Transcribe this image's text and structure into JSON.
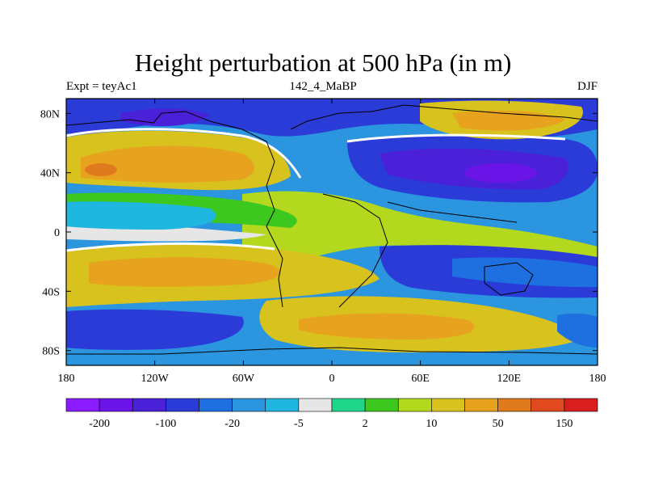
{
  "chart_data": {
    "type": "heatmap",
    "title": "Height perturbation at 500 hPa (in m)",
    "left_label": "Expt = teyAc1",
    "center_label": "142_4_MaBP",
    "right_label": "DJF",
    "x_ticks": [
      "180",
      "120W",
      "60W",
      "0",
      "60E",
      "120E",
      "180"
    ],
    "x_tick_values": [
      -180,
      -120,
      -60,
      0,
      60,
      120,
      180
    ],
    "y_ticks": [
      "80N",
      "40N",
      "0",
      "40S",
      "80S"
    ],
    "y_tick_values": [
      80,
      40,
      0,
      -40,
      -80
    ],
    "xlim": [
      -180,
      180
    ],
    "ylim": [
      -90,
      90
    ],
    "colorbar": {
      "colors": [
        "#8a1bff",
        "#6b14e8",
        "#4a20d8",
        "#2a3bd8",
        "#1e6fe0",
        "#2b95e0",
        "#1fb6e0",
        "#e6e6e6",
        "#1ed58a",
        "#3cc81e",
        "#b4d81e",
        "#d8c21e",
        "#e8a31e",
        "#e07a1e",
        "#e04a1e",
        "#d81e1e"
      ],
      "labels": [
        "-200",
        "-100",
        "-20",
        "-5",
        "2",
        "10",
        "50",
        "150"
      ]
    }
  }
}
